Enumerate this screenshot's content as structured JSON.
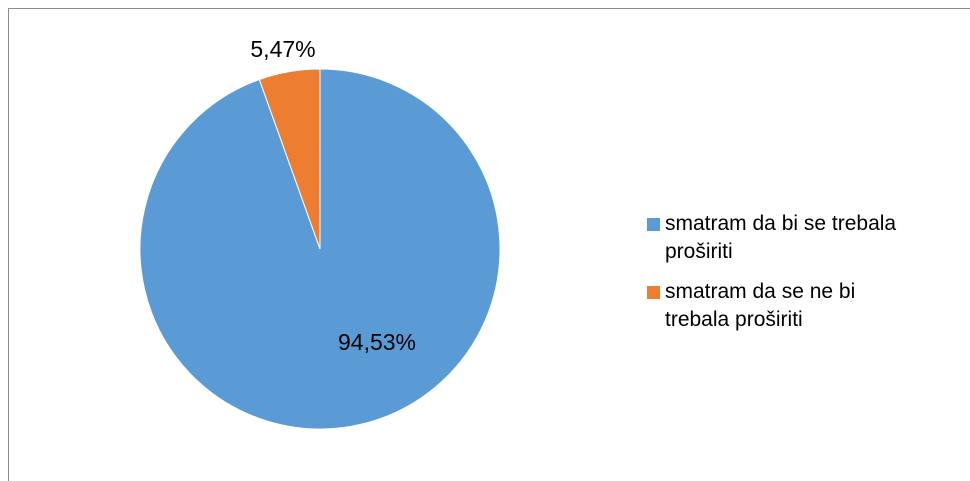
{
  "chart_data": {
    "type": "pie",
    "slices": [
      {
        "label": "smatram da bi se trebala proširiti",
        "value": 94.53,
        "data_label": "94,53%",
        "color": "#5B9BD5"
      },
      {
        "label": "smatram da se ne bi trebala proširiti",
        "value": 5.47,
        "data_label": "5,47%",
        "color": "#ED7D31"
      }
    ],
    "legend": {
      "placement": "right",
      "entries": [
        {
          "text_line1": "smatram da bi se trebala",
          "text_line2": "proširiti",
          "color": "#5B9BD5"
        },
        {
          "text_line1": "smatram da se ne bi",
          "text_line2": "trebala proširiti",
          "color": "#ED7D31"
        }
      ]
    },
    "start_angle": "12 o'clock",
    "direction": "clockwise"
  }
}
